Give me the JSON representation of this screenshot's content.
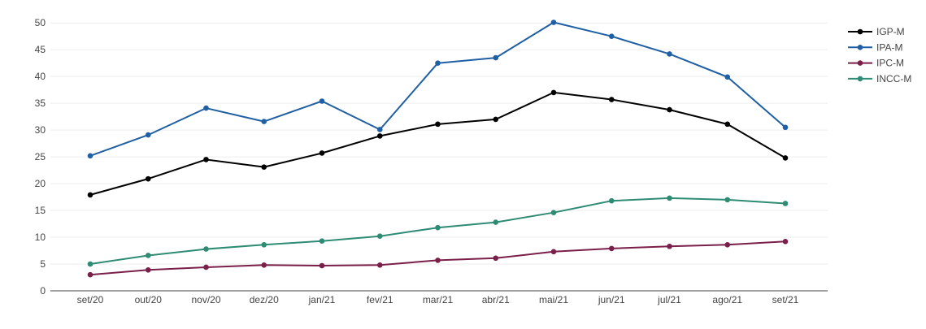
{
  "chart_data": {
    "type": "line",
    "title": "",
    "xlabel": "",
    "ylabel": "",
    "categories": [
      "set/20",
      "out/20",
      "nov/20",
      "dez/20",
      "jan/21",
      "fev/21",
      "mar/21",
      "abr/21",
      "mai/21",
      "jun/21",
      "jul/21",
      "ago/21",
      "set/21"
    ],
    "ylim": [
      0,
      52
    ],
    "yticks": [
      0,
      5,
      10,
      15,
      20,
      25,
      30,
      35,
      40,
      45,
      50
    ],
    "grid": true,
    "legend_position": "top-right",
    "series": [
      {
        "name": "IGP-M",
        "color": "#000000",
        "values": [
          17.9,
          20.9,
          24.5,
          23.1,
          25.7,
          28.9,
          31.1,
          32.0,
          37.0,
          35.7,
          33.8,
          31.1,
          24.8
        ]
      },
      {
        "name": "IPA-M",
        "color": "#1f5fa3",
        "values": [
          25.2,
          29.1,
          34.1,
          31.6,
          35.4,
          30.1,
          42.5,
          43.5,
          50.1,
          47.5,
          44.2,
          39.9,
          30.5
        ]
      },
      {
        "name": "IPC-M",
        "color": "#7a1f4a",
        "values": [
          3.0,
          3.9,
          4.4,
          4.8,
          4.7,
          4.8,
          5.7,
          6.1,
          7.3,
          7.9,
          8.3,
          8.6,
          9.2
        ]
      },
      {
        "name": "INCC-M",
        "color": "#2e8b74",
        "values": [
          5.0,
          6.6,
          7.8,
          8.6,
          9.3,
          10.2,
          11.8,
          12.8,
          14.6,
          16.8,
          17.3,
          17.0,
          16.3
        ]
      }
    ]
  }
}
